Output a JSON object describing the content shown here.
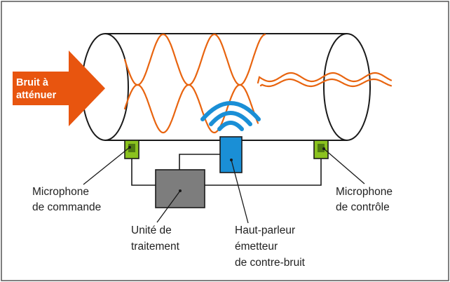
{
  "colors": {
    "background": "#ffffff",
    "frame": "#555555",
    "tube_outline": "#1a1a1a",
    "wave": "#e8640f",
    "arrow": "#e8550f",
    "arrow_text": "#ffffff",
    "wifi": "#1a8fd6",
    "speaker": "#1a8fd6",
    "microphone": "#8bc21f",
    "processor": "#7d7d7d",
    "wire": "#1a1a1a",
    "label_text": "#222222"
  },
  "noise_arrow": {
    "icon": "right-arrow-icon",
    "line1": "Bruit à",
    "line2": "atténuer"
  },
  "labels": {
    "command_mic": {
      "line1": "Microphone",
      "line2": "de commande"
    },
    "control_mic": {
      "line1": "Microphone",
      "line2": "de contrôle"
    },
    "processing_unit": {
      "line1": "Unité de",
      "line2": "traitement"
    },
    "speaker": {
      "line1": "Haut-parleur",
      "line2": "émetteur",
      "line3": "de contre-bruit"
    }
  },
  "icons": {
    "wifi": "wifi-signal-icon",
    "speaker": "speaker-icon",
    "microphone": "microphone-icon",
    "processor": "processor-icon"
  }
}
